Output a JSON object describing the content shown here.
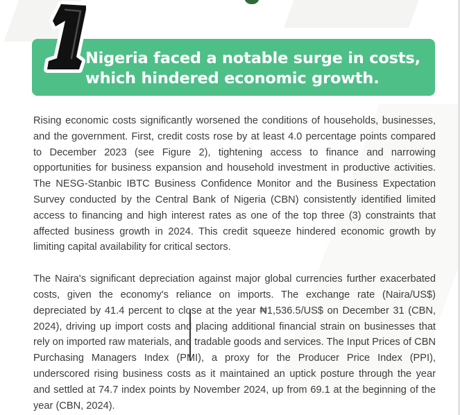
{
  "section": {
    "number": "1",
    "title": "Nigeria faced a notable surge in costs, which hindered economic growth."
  },
  "paragraphs": [
    "Rising economic costs significantly worsened the conditions of households, businesses, and the government. First, credit costs rose by at least 4.0 percentage points compared to December 2023 (see Figure 2), tightening access to finance and narrowing opportunities for business expansion and household investment in productive activities. The NESG-Stanbic IBTC Business Confidence Monitor and the Business Expectation Survey conducted by the Central Bank of Nigeria (CBN) consistently identified limited access to financing and high interest rates as one of the top three (3) constraints that affected business growth in 2024. This credit squeeze hindered economic growth by limiting capital availability for critical sectors.",
    "The Naira's significant depreciation against major global currencies further exacerbated costs, given the economy's reliance on imports. The exchange rate (Naira/US$) depreciated by 41.4 percent to close at the year ₦1,536.5/US$ on December 31 (CBN, 2024), driving up import costs and placing additional financial strain on businesses that rely on imported raw materials, and tradable goods and services. The Input Prices of CBN Purchasing Managers Index (PMI), a proxy for the Producer Price Index (PPI), underscored rising business costs as it maintained an uptick posture through the year and settled at 74.7 index points by November 2024, up from 69.1 at the beginning of the year (CBN, 2024)."
  ],
  "colors": {
    "banner": "#4fbf88",
    "banner_text": "#ffffff",
    "numeral": "#111111",
    "body_text": "#3b3b3b"
  }
}
